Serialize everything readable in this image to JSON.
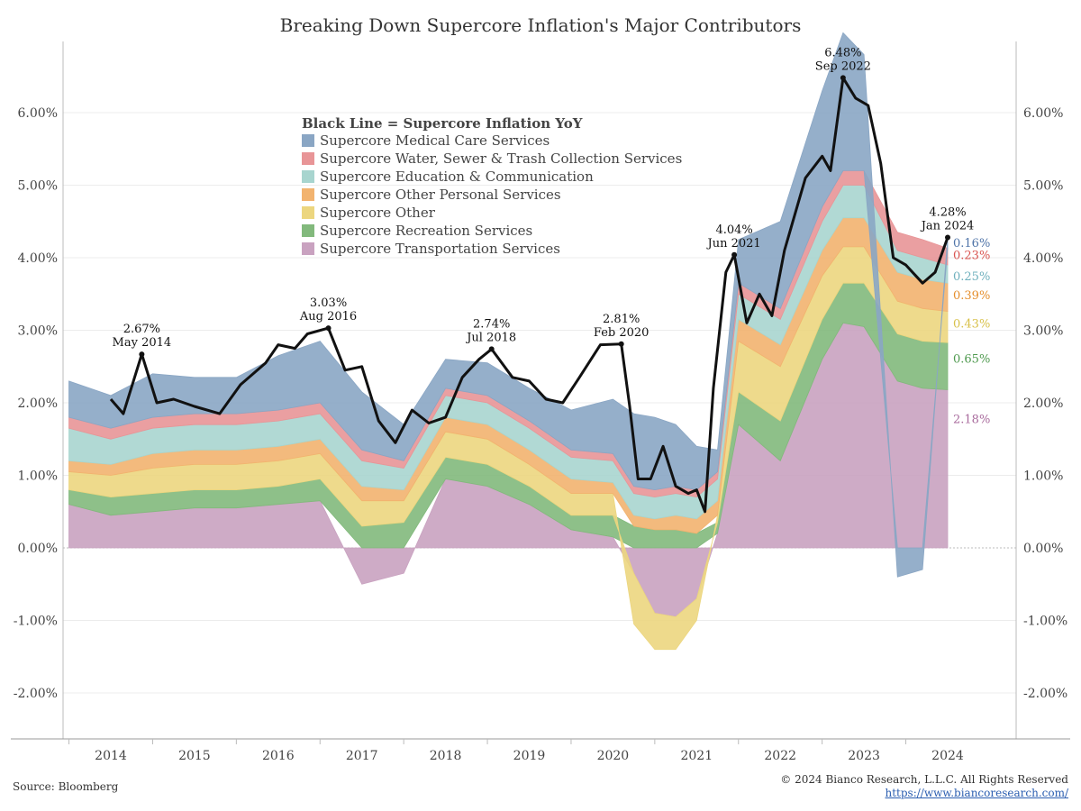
{
  "title": "Breaking Down Supercore Inflation's Major Contributors",
  "footer": {
    "source": "Source: Bloomberg",
    "copyright": "© 2024 Bianco Research, L.L.C. All Rights Reserved",
    "url": "https://www.biancoresearch.com/"
  },
  "chart_data": {
    "type": "area",
    "stacked": true,
    "ylim": [
      -2.5,
      7.0
    ],
    "xlim": [
      2013.5,
      2025.0
    ],
    "y_ticks": [
      -2,
      -1,
      0,
      1,
      2,
      3,
      4,
      5,
      6
    ],
    "y_tick_labels": [
      "-2.00%",
      "-1.00%",
      "0.00%",
      "1.00%",
      "2.00%",
      "3.00%",
      "4.00%",
      "5.00%",
      "6.00%"
    ],
    "x_ticks": [
      2014,
      2015,
      2016,
      2017,
      2018,
      2019,
      2020,
      2021,
      2022,
      2023,
      2024
    ],
    "x_tick_labels": [
      "2014",
      "2015",
      "2016",
      "2017",
      "2018",
      "2019",
      "2020",
      "2021",
      "2022",
      "2023",
      "2024"
    ],
    "axes": "left and right, mirrored",
    "legend": {
      "title": "Black Line = Supercore Inflation YoY",
      "placement": "top-center"
    },
    "x": [
      2013.5,
      2014.0,
      2014.5,
      2015.0,
      2015.5,
      2016.0,
      2016.5,
      2017.0,
      2017.5,
      2018.0,
      2018.5,
      2019.0,
      2019.5,
      2020.0,
      2020.25,
      2020.5,
      2020.75,
      2021.0,
      2021.25,
      2021.5,
      2022.0,
      2022.5,
      2022.75,
      2023.0,
      2023.4,
      2023.7,
      2024.0
    ],
    "series": [
      {
        "name": "Supercore Transportation Services",
        "color": "#c9a2c0",
        "values": [
          0.6,
          0.45,
          0.5,
          0.55,
          0.55,
          0.6,
          0.65,
          -0.5,
          -0.35,
          0.95,
          0.85,
          0.6,
          0.25,
          0.15,
          -0.35,
          -0.9,
          -0.95,
          -0.7,
          0.2,
          1.7,
          1.2,
          2.6,
          3.1,
          3.05,
          2.3,
          2.2,
          2.18
        ]
      },
      {
        "name": "Supercore Recreation Services",
        "color": "#82b97c",
        "values": [
          0.2,
          0.25,
          0.25,
          0.25,
          0.25,
          0.25,
          0.3,
          0.3,
          0.35,
          0.3,
          0.3,
          0.25,
          0.2,
          0.3,
          0.3,
          0.25,
          0.25,
          0.2,
          0.15,
          0.45,
          0.55,
          0.55,
          0.55,
          0.6,
          0.65,
          0.65,
          0.65
        ]
      },
      {
        "name": "Supercore Other",
        "color": "#ecd67f",
        "values": [
          0.25,
          0.3,
          0.35,
          0.35,
          0.35,
          0.35,
          0.35,
          0.35,
          0.3,
          0.35,
          0.35,
          0.3,
          0.3,
          0.3,
          -0.7,
          -0.5,
          -0.45,
          -0.3,
          0.1,
          0.7,
          0.75,
          0.6,
          0.5,
          0.5,
          0.45,
          0.45,
          0.43
        ]
      },
      {
        "name": "Supercore Other Personal Services",
        "color": "#f2b36f",
        "values": [
          0.15,
          0.15,
          0.2,
          0.2,
          0.2,
          0.2,
          0.2,
          0.2,
          0.15,
          0.2,
          0.2,
          0.2,
          0.2,
          0.15,
          0.15,
          0.15,
          0.2,
          0.2,
          0.2,
          0.3,
          0.3,
          0.35,
          0.4,
          0.4,
          0.4,
          0.4,
          0.39
        ]
      },
      {
        "name": "Supercore Education & Communication",
        "color": "#a8d5cf",
        "values": [
          0.45,
          0.35,
          0.35,
          0.35,
          0.35,
          0.35,
          0.35,
          0.35,
          0.3,
          0.3,
          0.3,
          0.3,
          0.3,
          0.3,
          0.3,
          0.3,
          0.3,
          0.3,
          0.3,
          0.35,
          0.35,
          0.4,
          0.45,
          0.45,
          0.3,
          0.3,
          0.25
        ]
      },
      {
        "name": "Supercore Water, Sewer & Trash Collection Services",
        "color": "#e89597",
        "values": [
          0.15,
          0.15,
          0.15,
          0.15,
          0.15,
          0.15,
          0.15,
          0.15,
          0.1,
          0.1,
          0.1,
          0.1,
          0.1,
          0.1,
          0.1,
          0.1,
          0.1,
          0.1,
          0.1,
          0.15,
          0.15,
          0.2,
          0.2,
          0.2,
          0.25,
          0.25,
          0.23
        ]
      },
      {
        "name": "Supercore Medical Care Services",
        "color": "#8aa6c4",
        "values": [
          0.5,
          0.45,
          0.6,
          0.5,
          0.5,
          0.75,
          0.85,
          0.8,
          0.5,
          0.4,
          0.45,
          0.45,
          0.55,
          0.75,
          1.0,
          1.0,
          0.85,
          0.6,
          0.3,
          0.6,
          1.2,
          1.6,
          1.9,
          1.6,
          -0.4,
          -0.3,
          0.16
        ]
      }
    ],
    "line": {
      "name": "Supercore Inflation YoY",
      "color": "#111111",
      "x": [
        2014.0,
        2014.15,
        2014.37,
        2014.55,
        2014.75,
        2015.0,
        2015.3,
        2015.55,
        2015.85,
        2016.0,
        2016.2,
        2016.35,
        2016.6,
        2016.8,
        2017.0,
        2017.2,
        2017.4,
        2017.6,
        2017.8,
        2018.0,
        2018.2,
        2018.4,
        2018.55,
        2018.8,
        2019.0,
        2019.2,
        2019.4,
        2019.6,
        2019.85,
        2020.1,
        2020.2,
        2020.3,
        2020.45,
        2020.6,
        2020.75,
        2020.9,
        2021.0,
        2021.1,
        2021.2,
        2021.35,
        2021.45,
        2021.6,
        2021.75,
        2021.9,
        2022.05,
        2022.3,
        2022.5,
        2022.6,
        2022.75,
        2022.9,
        2023.05,
        2023.2,
        2023.35,
        2023.5,
        2023.7,
        2023.85,
        2024.0
      ],
      "values": [
        2.05,
        1.85,
        2.67,
        2.0,
        2.05,
        1.95,
        1.85,
        2.25,
        2.55,
        2.8,
        2.75,
        2.95,
        3.03,
        2.45,
        2.5,
        1.75,
        1.45,
        1.9,
        1.72,
        1.8,
        2.35,
        2.6,
        2.74,
        2.35,
        2.3,
        2.05,
        2.0,
        2.35,
        2.8,
        2.81,
        1.95,
        0.95,
        0.95,
        1.4,
        0.85,
        0.75,
        0.8,
        0.5,
        2.2,
        3.8,
        4.04,
        3.1,
        3.5,
        3.2,
        4.1,
        5.1,
        5.4,
        5.2,
        6.48,
        6.2,
        6.1,
        5.3,
        4.0,
        3.9,
        3.65,
        3.8,
        4.28
      ]
    },
    "annotations": [
      {
        "value": "2.67%",
        "date": "May 2014",
        "x": 2014.37,
        "y": 2.67
      },
      {
        "value": "3.03%",
        "date": "Aug 2016",
        "x": 2016.6,
        "y": 3.03
      },
      {
        "value": "2.74%",
        "date": "Jul 2018",
        "x": 2018.55,
        "y": 2.74
      },
      {
        "value": "2.81%",
        "date": "Feb 2020",
        "x": 2020.1,
        "y": 2.81
      },
      {
        "value": "4.04%",
        "date": "Jun 2021",
        "x": 2021.45,
        "y": 4.04
      },
      {
        "value": "6.48%",
        "date": "Sep 2022",
        "x": 2022.75,
        "y": 6.48
      },
      {
        "value": "4.28%",
        "date": "Jan 2024",
        "x": 2024.0,
        "y": 4.28
      }
    ],
    "end_labels": [
      {
        "text": "0.16%",
        "color": "#4f74a8",
        "y": 4.2
      },
      {
        "text": "0.23%",
        "color": "#d9534f",
        "y": 4.03
      },
      {
        "text": "0.25%",
        "color": "#6fb0bd",
        "y": 3.74
      },
      {
        "text": "0.39%",
        "color": "#e58e2c",
        "y": 3.48
      },
      {
        "text": "0.43%",
        "color": "#d8c14a",
        "y": 3.09
      },
      {
        "text": "0.65%",
        "color": "#4f9a4f",
        "y": 2.6
      },
      {
        "text": "2.18%",
        "color": "#a86a9c",
        "y": 1.77
      }
    ]
  }
}
